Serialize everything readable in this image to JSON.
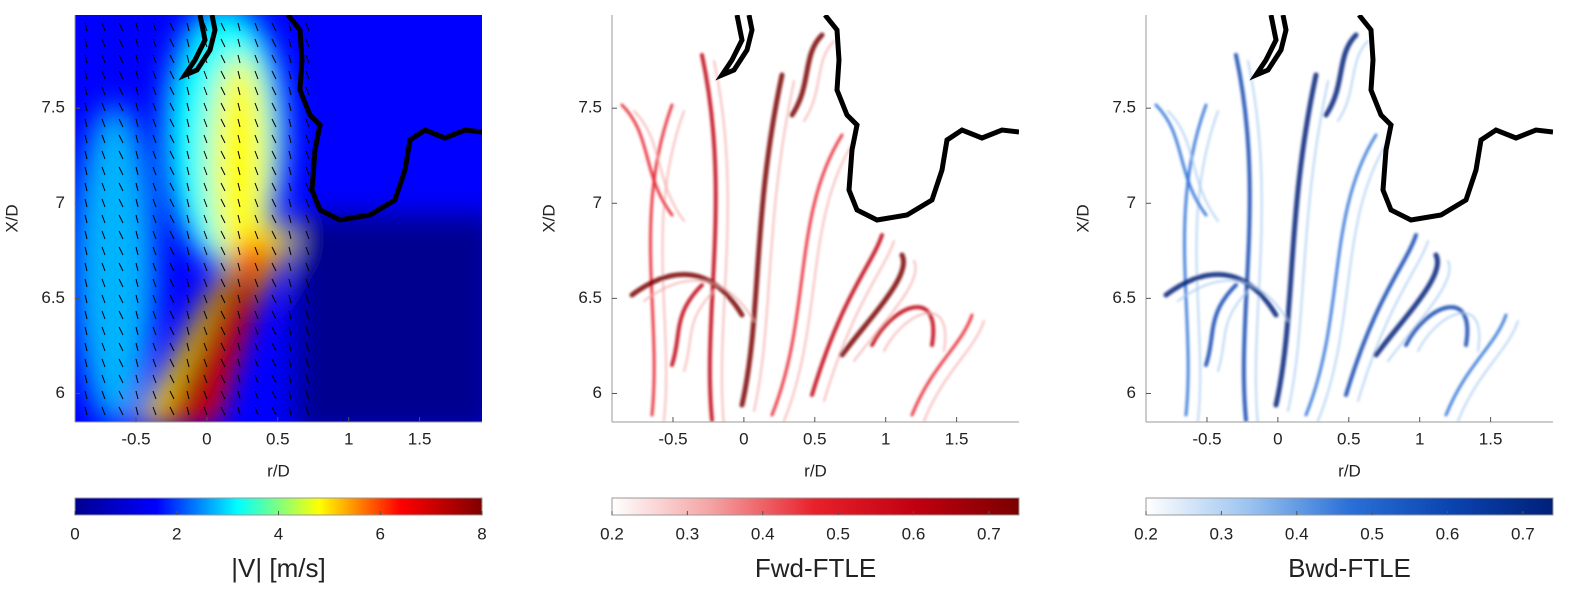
{
  "chart_data": [
    {
      "type": "heatmap",
      "xlabel": "r/D",
      "ylabel": "X/D",
      "xlim": [
        -0.93,
        1.94
      ],
      "xticks": [
        -0.5,
        0,
        0.5,
        1,
        1.5
      ],
      "ylim": [
        5.85,
        7.99
      ],
      "yticks": [
        6,
        6.5,
        7,
        7.5
      ],
      "colorbar": {
        "label": "|V| [m/s]",
        "clim": [
          0,
          8
        ],
        "ticks": [
          0,
          2,
          4,
          6,
          8
        ],
        "colormap": [
          "#00008f",
          "#0000ff",
          "#00ffff",
          "#ffff00",
          "#ff0000",
          "#800000"
        ]
      }
    },
    {
      "type": "heatmap",
      "xlabel": "r/D",
      "ylabel": "X/D",
      "xlim": [
        -0.93,
        1.94
      ],
      "xticks": [
        -0.5,
        0,
        0.5,
        1,
        1.5
      ],
      "ylim": [
        5.85,
        7.99
      ],
      "yticks": [
        6,
        6.5,
        7,
        7.5
      ],
      "colorbar": {
        "label": "Fwd-FTLE",
        "clim": [
          0.2,
          0.74
        ],
        "ticks": [
          0.2,
          0.3,
          0.4,
          0.5,
          0.6,
          0.7
        ],
        "colormap": [
          "#ffffff",
          "#f4a0a0",
          "#e8202a",
          "#c00010",
          "#7a0000"
        ]
      }
    },
    {
      "type": "heatmap",
      "xlabel": "r/D",
      "ylabel": "X/D",
      "xlim": [
        -0.93,
        1.94
      ],
      "xticks": [
        -0.5,
        0,
        0.5,
        1,
        1.5
      ],
      "ylim": [
        5.85,
        7.99
      ],
      "yticks": [
        6,
        6.5,
        7,
        7.5
      ],
      "colorbar": {
        "label": "Bwd-FTLE",
        "clim": [
          0.2,
          0.74
        ],
        "ticks": [
          0.2,
          0.3,
          0.4,
          0.5,
          0.6,
          0.7
        ],
        "colormap": [
          "#ffffff",
          "#9cc4f0",
          "#2a70d8",
          "#0a44b0",
          "#00207a"
        ]
      }
    }
  ]
}
